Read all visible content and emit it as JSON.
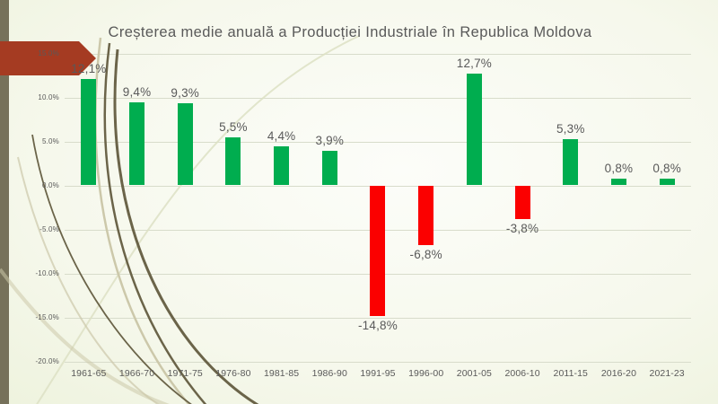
{
  "slide": {
    "title": "Creșterea medie anuală a Producției Industriale în Republica Moldova"
  },
  "chart_data": {
    "type": "bar",
    "title": "Creșterea medie anuală a Producției Industriale în Republica Moldova",
    "categories": [
      "1961-65",
      "1966-70",
      "1971-75",
      "1976-80",
      "1981-85",
      "1986-90",
      "1991-95",
      "1996-00",
      "2001-05",
      "2006-10",
      "2011-15",
      "2016-20",
      "2021-23"
    ],
    "values": [
      12.1,
      9.4,
      9.3,
      5.5,
      4.4,
      3.9,
      -14.8,
      -6.8,
      12.7,
      -3.8,
      5.3,
      0.8,
      0.8
    ],
    "value_labels": [
      "12,1%",
      "9,4%",
      "9,3%",
      "5,5%",
      "4,4%",
      "3,9%",
      "-14,8%",
      "-6,8%",
      "12,7%",
      "-3,8%",
      "5,3%",
      "0,8%",
      "0,8%"
    ],
    "y_ticks": [
      {
        "label": "15.0%",
        "value": 15
      },
      {
        "label": "10.0%",
        "value": 10
      },
      {
        "label": "5.0%",
        "value": 5
      },
      {
        "label": "0.0%",
        "value": 0
      },
      {
        "label": "-5.0%",
        "value": -5
      },
      {
        "label": "-10.0%",
        "value": -10
      },
      {
        "label": "-15.0%",
        "value": -15
      },
      {
        "label": "-20.0%",
        "value": -20
      }
    ],
    "ylim": [
      -20,
      15
    ],
    "xlabel": "",
    "ylabel": "",
    "grid": true,
    "legend": false,
    "bar_positive_color": "#00AD4F",
    "bar_negative_color": "#FB0000",
    "label_color": "#595959",
    "gridline_color": "#D8DCCB"
  },
  "decor": {
    "left_strip_color": "#76715A",
    "arrow_color": "#A53B22",
    "curve_dark_color": "#6B6449",
    "curve_light_color": "#CCC8AA",
    "curve_faint_color": "#DDE1C4"
  }
}
